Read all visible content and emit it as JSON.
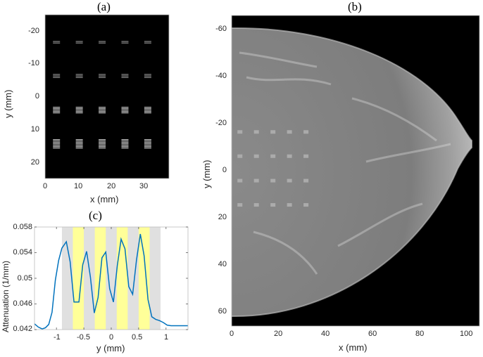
{
  "panels": {
    "a": {
      "title": "(a)",
      "xlabel": "x (mm)",
      "ylabel": "y (mm)",
      "xticks": [
        "0",
        "10",
        "20",
        "30"
      ],
      "yticks": [
        "-20",
        "-10",
        "0",
        "10",
        "20"
      ]
    },
    "b": {
      "title": "(b)",
      "xlabel": "x (mm)",
      "ylabel": "y (mm)",
      "xticks": [
        "0",
        "20",
        "40",
        "60",
        "80",
        "100"
      ],
      "yticks": [
        "-60",
        "-40",
        "-20",
        "0",
        "20",
        "40",
        "60"
      ]
    },
    "c": {
      "title": "(c)",
      "xlabel": "y (mm)",
      "ylabel": "Attenuation (1/mm)",
      "xticks": [
        "-1",
        "-0.5",
        "0",
        "0.5",
        "1"
      ],
      "yticks": [
        "0.058",
        "0.054",
        "0.05",
        "0.046",
        "0.042"
      ]
    }
  },
  "chart_data": [
    {
      "type": "heatmap",
      "title": "(a)",
      "xlabel": "x (mm)",
      "ylabel": "y (mm)",
      "xlim": [
        0,
        38
      ],
      "ylim": [
        -25,
        25
      ],
      "description": "Simulated phantom: 4 rows x 5 columns of line-pair bar patterns on black background",
      "pattern_columns_x_mm": [
        3.5,
        10.5,
        17.5,
        24.5,
        31.5
      ],
      "pattern_rows_y_mm": [
        -16.5,
        -6.2,
        4.2,
        14.5
      ]
    },
    {
      "type": "heatmap",
      "title": "(b)",
      "xlabel": "x (mm)",
      "ylabel": "y (mm)",
      "xlim": [
        0,
        105
      ],
      "ylim": [
        -66,
        66
      ],
      "description": "Breast mammogram-like image with embedded line-pair patterns in 4 rows x 5 columns near the chest wall"
    },
    {
      "type": "line",
      "title": "(c)",
      "xlabel": "y (mm)",
      "ylabel": "Attenuation (1/mm)",
      "xlim": [
        -1.4,
        1.4
      ],
      "ylim": [
        0.042,
        0.058
      ],
      "x": [
        -1.4,
        -1.33,
        -1.26,
        -1.2,
        -1.14,
        -1.08,
        -1.02,
        -0.96,
        -0.9,
        -0.82,
        -0.75,
        -0.68,
        -0.59,
        -0.52,
        -0.45,
        -0.38,
        -0.31,
        -0.24,
        -0.17,
        -0.1,
        -0.03,
        0.04,
        0.11,
        0.18,
        0.25,
        0.32,
        0.39,
        0.46,
        0.53,
        0.6,
        0.67,
        0.74,
        0.81,
        0.88,
        0.95,
        1.02,
        1.09,
        1.16,
        1.23,
        1.3,
        1.36,
        1.4
      ],
      "series": [
        {
          "name": "profile",
          "color": "#0072BD",
          "values": [
            0.0429,
            0.0424,
            0.0421,
            0.0423,
            0.0428,
            0.0447,
            0.0497,
            0.0528,
            0.0547,
            0.0557,
            0.0526,
            0.0463,
            0.0463,
            0.0521,
            0.0542,
            0.0502,
            0.0446,
            0.047,
            0.0532,
            0.0541,
            0.0484,
            0.0463,
            0.052,
            0.0561,
            0.0546,
            0.0487,
            0.0475,
            0.0528,
            0.0569,
            0.0535,
            0.0467,
            0.044,
            0.0436,
            0.0434,
            0.0431,
            0.0427,
            0.0426,
            0.0426,
            0.0426,
            0.0426,
            0.0426,
            0.0426
          ]
        }
      ],
      "bands": [
        {
          "from": -0.9,
          "to": 0.9,
          "color": "#e0e0e0"
        },
        {
          "from": -0.7,
          "to": -0.5,
          "color": "#ffff99"
        },
        {
          "from": -0.3,
          "to": -0.1,
          "color": "#ffff99"
        },
        {
          "from": 0.1,
          "to": 0.3,
          "color": "#ffff99"
        },
        {
          "from": 0.5,
          "to": 0.7,
          "color": "#ffff99"
        }
      ]
    }
  ]
}
